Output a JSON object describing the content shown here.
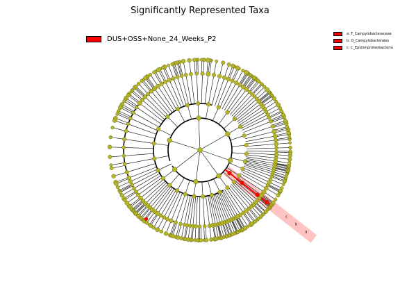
{
  "title": "Significantly Represented Taxa",
  "legend": {
    "group_label": "DUS+OSS+None_24_Weeks_P2",
    "group_color": "#ff0000"
  },
  "clade_legend": [
    {
      "label": "a: F_Campylobacteraceae",
      "color": "#ff0000"
    },
    {
      "label": "b: O_Campylobacterales",
      "color": "#ff0000"
    },
    {
      "label": "c: C_Epsilonproteobacteria",
      "color": "#ff0000"
    }
  ],
  "highlight_labels": [
    "c",
    "b",
    "a"
  ],
  "colors": {
    "node_fill": "#b5b52a",
    "node_stroke": "#6a6a10",
    "highlight": "#ff0000",
    "highlight_shade": "#ffaaaa",
    "line": "#000000"
  }
}
